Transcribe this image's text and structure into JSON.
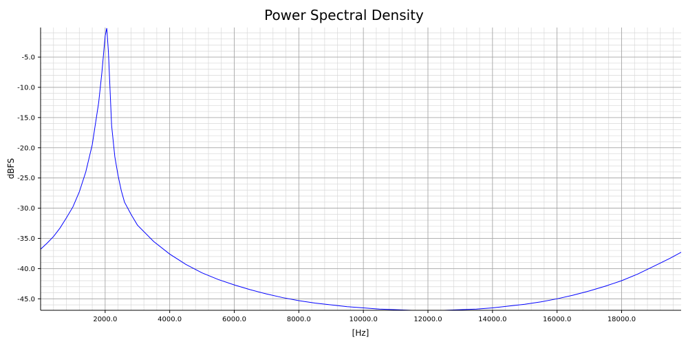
{
  "chart_data": {
    "type": "line",
    "title": "Power Spectral Density",
    "xlabel": "[Hz]",
    "ylabel": "dBFS",
    "xlim": [
      0,
      19843.75
    ],
    "ylim": [
      -46.9,
      -0.1
    ],
    "x_ticks": [
      2000,
      4000,
      6000,
      8000,
      10000,
      12000,
      14000,
      16000,
      18000
    ],
    "x_tick_labels": [
      "2000.0",
      "4000.0",
      "6000.0",
      "8000.0",
      "10000.0",
      "12000.0",
      "14000.0",
      "16000.0",
      "18000.0"
    ],
    "y_ticks": [
      -5,
      -10,
      -15,
      -20,
      -25,
      -30,
      -35,
      -40,
      -45
    ],
    "y_tick_labels": [
      "-5.0",
      "-10.0",
      "-15.0",
      "-20.0",
      "-25.0",
      "-30.0",
      "-35.0",
      "-40.0",
      "-45.0"
    ],
    "grid": true,
    "series": [
      {
        "color": "#0000ff",
        "x": [
          0,
          200,
          400,
          600,
          800,
          1000,
          1200,
          1400,
          1600,
          1800,
          1900,
          2000,
          2050,
          2100,
          2200,
          2300,
          2400,
          2500,
          2600,
          2800,
          3000,
          3500,
          4000,
          4500,
          5000,
          5500,
          6000,
          6500,
          7000,
          7500,
          8000,
          8500,
          9000,
          9500,
          10000,
          10500,
          11000,
          11500,
          12000,
          12500,
          13000,
          13500,
          14000,
          14500,
          15000,
          15500,
          16000,
          16500,
          17000,
          17500,
          18000,
          18500,
          19000,
          19500,
          19843.75
        ],
        "y": [
          -36.8,
          -35.8,
          -34.7,
          -33.3,
          -31.6,
          -29.8,
          -27.3,
          -24,
          -19.5,
          -12.5,
          -7.5,
          -1.5,
          -0.2,
          -4,
          -16.3,
          -21.5,
          -24.6,
          -27.1,
          -29,
          -31,
          -32.8,
          -35.5,
          -37.6,
          -39.3,
          -40.7,
          -41.8,
          -42.7,
          -43.5,
          -44.2,
          -44.8,
          -45.3,
          -45.7,
          -46,
          -46.3,
          -46.5,
          -46.7,
          -46.8,
          -46.9,
          -46.9,
          -46.9,
          -46.8,
          -46.7,
          -46.5,
          -46.2,
          -45.9,
          -45.5,
          -45,
          -44.4,
          -43.7,
          -42.9,
          -42,
          -40.9,
          -39.6,
          -38.3,
          -37.3
        ]
      }
    ]
  }
}
